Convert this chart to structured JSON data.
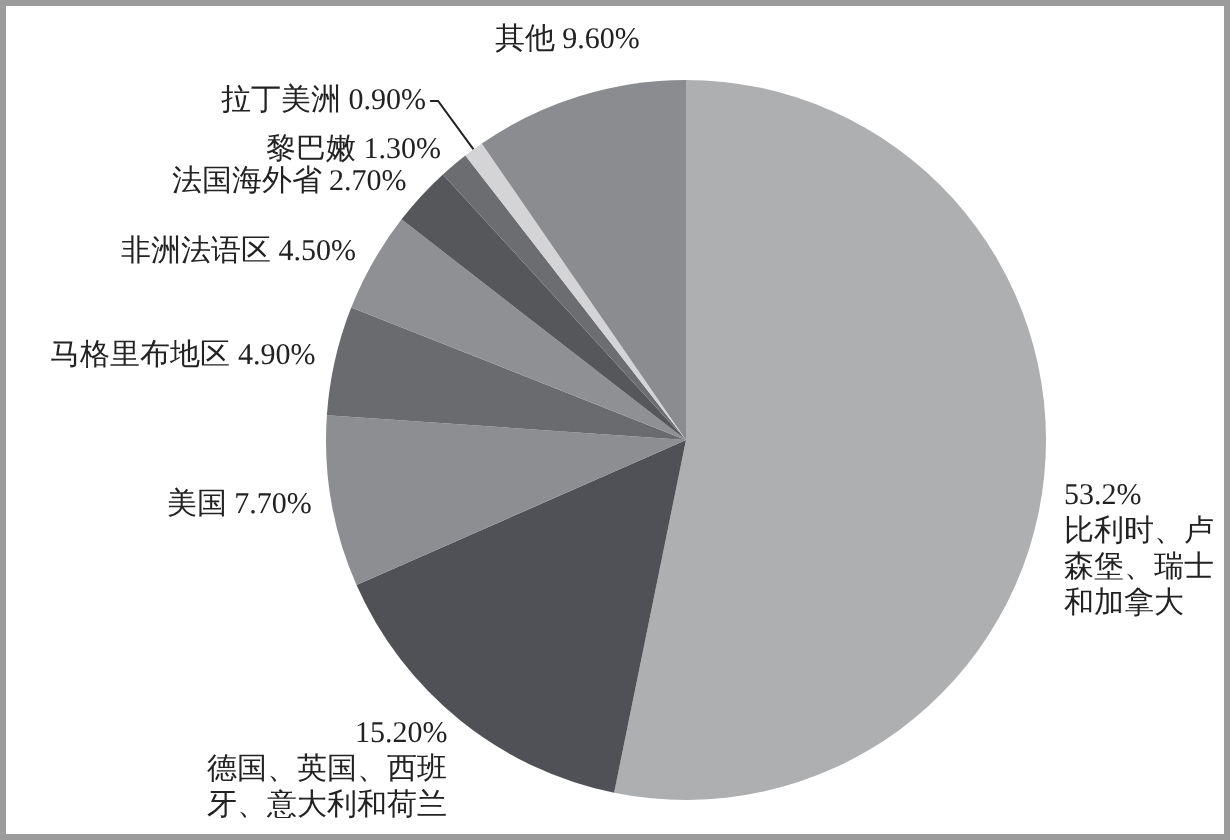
{
  "chart_data": {
    "type": "pie",
    "categories": [
      "比利时、卢森堡、瑞士和加拿大",
      "德国、英国、西班牙、意大利和荷兰",
      "美国",
      "马格里布地区",
      "非洲法语区",
      "法国海外省",
      "黎巴嫩",
      "拉丁美洲",
      "其他"
    ],
    "values": [
      53.2,
      15.2,
      7.7,
      4.9,
      4.5,
      2.7,
      1.3,
      0.9,
      9.6
    ],
    "value_labels": [
      "53.2%",
      "15.20%",
      "7.70%",
      "4.90%",
      "4.50%",
      "2.70%",
      "1.30%",
      "0.90%",
      "9.60%"
    ],
    "colors": [
      "#aeafb1",
      "#4f5156",
      "#8d8e92",
      "#6a6b6f",
      "#8f9094",
      "#56575b",
      "#6c6d71",
      "#d4d4d6",
      "#8b8c90"
    ]
  }
}
